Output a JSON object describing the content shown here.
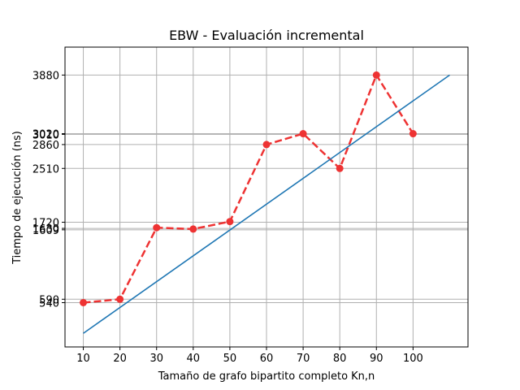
{
  "chart_data": {
    "type": "line",
    "title": "EBW - Evaluación incremental",
    "xlabel": "Tamaño de grafo bipartito completo Kn,n",
    "ylabel": "Tiempo de ejecución (ns)",
    "x": [
      10,
      20,
      30,
      40,
      50,
      60,
      70,
      80,
      90,
      100
    ],
    "x_ticks": [
      "10",
      "20",
      "30",
      "40",
      "50",
      "60",
      "70",
      "80",
      "90",
      "100"
    ],
    "y_ticks": [
      540,
      590,
      1609,
      1630,
      1720,
      2510,
      2860,
      3010,
      3020,
      3880
    ],
    "y_tick_labels": [
      "540",
      "590",
      "1609",
      "1630",
      "1720",
      "2510",
      "2860",
      "3010",
      "3020",
      "3880"
    ],
    "xlim": [
      5,
      115
    ],
    "ylim": [
      -110,
      4290
    ],
    "grid": true,
    "series": [
      {
        "style": "dashed-markers",
        "color": "#ee3333",
        "x": [
          10,
          20,
          30,
          40,
          50,
          60,
          70,
          80,
          90,
          100
        ],
        "values": [
          540,
          590,
          1640,
          1620,
          1730,
          2860,
          3020,
          2510,
          3880,
          3020
        ]
      },
      {
        "style": "solid",
        "color": "#1f77b4",
        "x": [
          10,
          110
        ],
        "values": [
          90,
          3880
        ]
      }
    ]
  }
}
